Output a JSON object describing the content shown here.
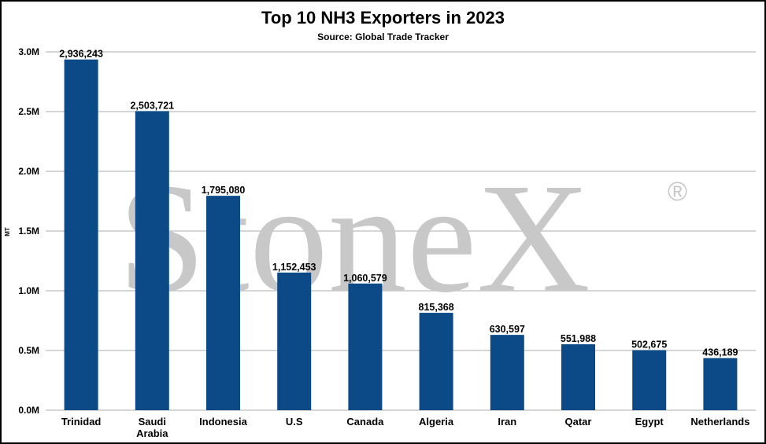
{
  "watermark": {
    "text": "StoneX",
    "mark": "®"
  },
  "colors": {
    "bar": "#0b4a86",
    "grid": "#c8c8c8"
  },
  "chart_data": {
    "type": "bar",
    "title": "Top 10 NH3 Exporters in 2023",
    "subtitle": "Source: Global Trade Tracker",
    "ylabel": "MT",
    "xlabel": "",
    "ylim": [
      0,
      3000000
    ],
    "yticks": [
      0,
      500000,
      1000000,
      1500000,
      2000000,
      2500000,
      3000000
    ],
    "ytick_labels": [
      "0.0M",
      "0.5M",
      "1.0M",
      "1.5M",
      "2.0M",
      "2.5M",
      "3.0M"
    ],
    "grid": true,
    "categories": [
      "Trinidad",
      "Saudi Arabia",
      "Indonesia",
      "U.S",
      "Canada",
      "Algeria",
      "Iran",
      "Qatar",
      "Egypt",
      "Netherlands"
    ],
    "values": [
      2936243,
      2503721,
      1795080,
      1152453,
      1060579,
      815368,
      630597,
      551988,
      502675,
      436189
    ],
    "data_labels": [
      "2,936,243",
      "2,503,721",
      "1,795,080",
      "1,152,453",
      "1,060,579",
      "815,368",
      "630,597",
      "551,988",
      "502,675",
      "436,189"
    ]
  }
}
